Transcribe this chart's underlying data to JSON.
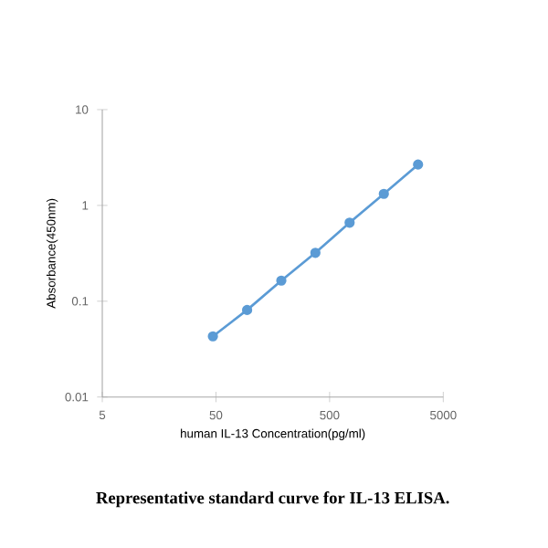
{
  "chart_data": {
    "type": "line",
    "x": [
      47,
      94,
      188,
      375,
      750,
      1500,
      3000
    ],
    "series": [
      {
        "color": "#5b9bd5",
        "values": [
          0.043,
          0.081,
          0.164,
          0.32,
          0.66,
          1.32,
          2.67
        ]
      }
    ],
    "xlabel": "human IL-13 Concentration(pg/ml)",
    "ylabel": "Absorbance(450nm)",
    "xlim": [
      5,
      5000
    ],
    "ylim": [
      0.01,
      10
    ],
    "xticks": [
      5,
      50,
      500,
      5000
    ],
    "yticks": [
      0.01,
      0.1,
      1,
      10
    ],
    "log": "xy",
    "grid": false,
    "marker": "circle",
    "line_style": "solid",
    "annotations": [
      "Representative standard curve for IL-13 ELISA."
    ]
  }
}
